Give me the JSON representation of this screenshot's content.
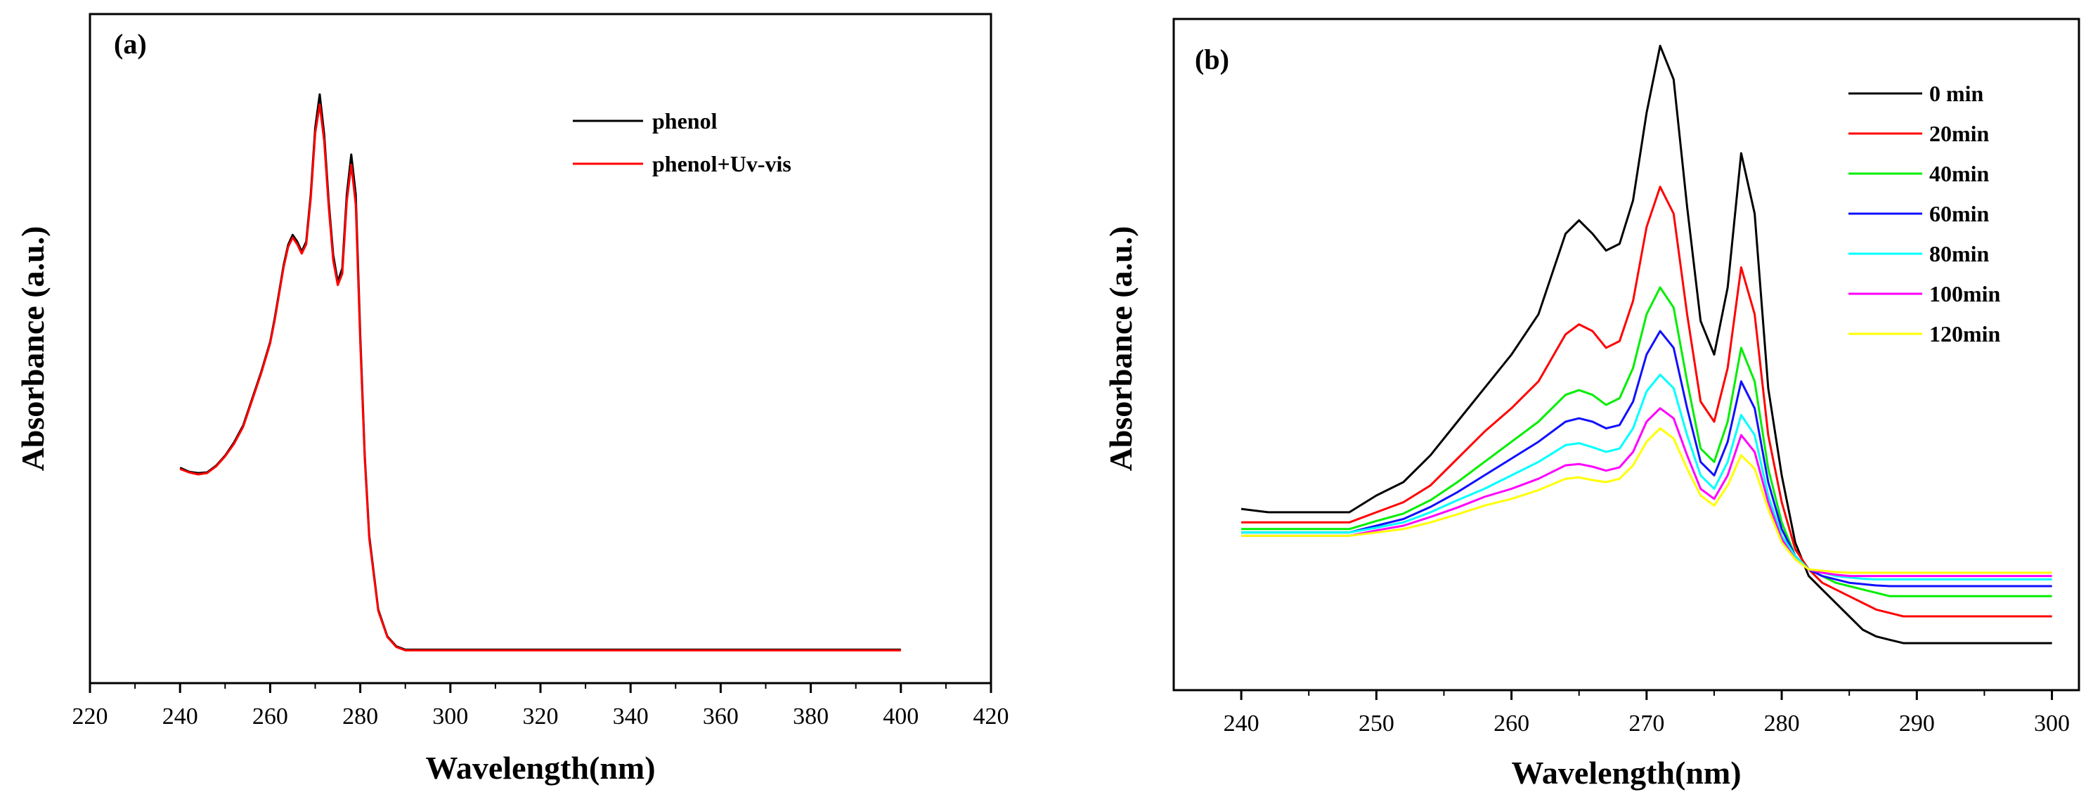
{
  "chart_data": [
    {
      "type": "line",
      "panel_label": "(a)",
      "xlabel": "Wavelength(nm)",
      "ylabel": "Absorbance (a.u.)",
      "xlim": [
        220,
        420
      ],
      "ylim": [
        0,
        1
      ],
      "xticks": [
        220,
        240,
        260,
        280,
        300,
        320,
        340,
        360,
        380,
        400,
        420
      ],
      "xtick_labels": [
        "220",
        "240",
        "260",
        "280",
        "300",
        "320",
        "340",
        "360",
        "380",
        "400",
        "420"
      ],
      "legend_position": "top-right",
      "series": [
        {
          "name": "phenol",
          "color": "#000000",
          "x": [
            240,
            242,
            244,
            246,
            248,
            250,
            252,
            254,
            256,
            258,
            260,
            261,
            262,
            263,
            264,
            265,
            266,
            267,
            268,
            269,
            270,
            271,
            272,
            273,
            274,
            275,
            276,
            277,
            278,
            279,
            280,
            281,
            282,
            284,
            286,
            288,
            290,
            295,
            300,
            310,
            320,
            330,
            340,
            350,
            360,
            370,
            380,
            390,
            400
          ],
          "y": [
            0.322,
            0.316,
            0.314,
            0.315,
            0.325,
            0.34,
            0.36,
            0.385,
            0.425,
            0.465,
            0.51,
            0.545,
            0.585,
            0.625,
            0.655,
            0.67,
            0.66,
            0.645,
            0.66,
            0.73,
            0.83,
            0.88,
            0.82,
            0.72,
            0.64,
            0.6,
            0.62,
            0.73,
            0.79,
            0.73,
            0.52,
            0.34,
            0.22,
            0.11,
            0.07,
            0.055,
            0.05,
            0.05,
            0.05,
            0.05,
            0.05,
            0.05,
            0.05,
            0.05,
            0.05,
            0.05,
            0.05,
            0.05,
            0.05
          ]
        },
        {
          "name": "phenol+Uv-vis",
          "color": "#ff0000",
          "x": [
            240,
            242,
            244,
            246,
            248,
            250,
            252,
            254,
            256,
            258,
            260,
            261,
            262,
            263,
            264,
            265,
            266,
            267,
            268,
            269,
            270,
            271,
            272,
            273,
            274,
            275,
            276,
            277,
            278,
            279,
            280,
            281,
            282,
            284,
            286,
            288,
            290,
            295,
            300,
            310,
            320,
            330,
            340,
            350,
            360,
            370,
            380,
            390,
            400
          ],
          "y": [
            0.32,
            0.315,
            0.312,
            0.314,
            0.324,
            0.339,
            0.358,
            0.383,
            0.423,
            0.463,
            0.508,
            0.542,
            0.582,
            0.622,
            0.652,
            0.666,
            0.656,
            0.642,
            0.656,
            0.724,
            0.822,
            0.865,
            0.81,
            0.712,
            0.632,
            0.595,
            0.612,
            0.72,
            0.775,
            0.715,
            0.51,
            0.335,
            0.216,
            0.108,
            0.069,
            0.054,
            0.049,
            0.049,
            0.049,
            0.049,
            0.049,
            0.049,
            0.049,
            0.049,
            0.049,
            0.049,
            0.049,
            0.049,
            0.049
          ]
        }
      ]
    },
    {
      "type": "line",
      "panel_label": "(b)",
      "xlabel": "Wavelength(nm)",
      "ylabel": "Absorbance (a.u.)",
      "xlim": [
        235,
        302
      ],
      "ylim": [
        0,
        1
      ],
      "xticks": [
        240,
        250,
        260,
        270,
        280,
        290,
        300
      ],
      "xtick_labels": [
        "240",
        "250",
        "260",
        "270",
        "280",
        "290",
        "300"
      ],
      "legend_position": "top-right",
      "x": [
        240,
        242,
        244,
        246,
        248,
        250,
        252,
        254,
        256,
        258,
        260,
        262,
        264,
        265,
        266,
        267,
        268,
        269,
        270,
        271,
        272,
        273,
        274,
        275,
        276,
        277,
        278,
        279,
        280,
        281,
        282,
        283,
        284,
        285,
        286,
        287,
        288,
        289,
        290,
        292,
        294,
        296,
        298,
        300
      ],
      "series": [
        {
          "name": "0 min",
          "color": "#000000",
          "y": [
            0.27,
            0.265,
            0.265,
            0.265,
            0.265,
            0.29,
            0.31,
            0.35,
            0.4,
            0.45,
            0.5,
            0.56,
            0.68,
            0.7,
            0.68,
            0.655,
            0.665,
            0.73,
            0.86,
            0.96,
            0.91,
            0.72,
            0.55,
            0.5,
            0.6,
            0.8,
            0.71,
            0.45,
            0.32,
            0.22,
            0.17,
            0.15,
            0.13,
            0.11,
            0.09,
            0.08,
            0.075,
            0.07,
            0.07,
            0.07,
            0.07,
            0.07,
            0.07,
            0.07
          ]
        },
        {
          "name": "20min",
          "color": "#ff0000",
          "y": [
            0.25,
            0.25,
            0.25,
            0.25,
            0.25,
            0.265,
            0.28,
            0.305,
            0.345,
            0.385,
            0.42,
            0.46,
            0.53,
            0.545,
            0.535,
            0.51,
            0.52,
            0.58,
            0.69,
            0.75,
            0.71,
            0.56,
            0.43,
            0.4,
            0.48,
            0.63,
            0.56,
            0.38,
            0.28,
            0.21,
            0.18,
            0.16,
            0.15,
            0.14,
            0.13,
            0.12,
            0.115,
            0.11,
            0.11,
            0.11,
            0.11,
            0.11,
            0.11,
            0.11
          ]
        },
        {
          "name": "40min",
          "color": "#00ee00",
          "y": [
            0.24,
            0.24,
            0.24,
            0.24,
            0.24,
            0.252,
            0.263,
            0.283,
            0.31,
            0.34,
            0.37,
            0.4,
            0.44,
            0.447,
            0.44,
            0.425,
            0.435,
            0.48,
            0.56,
            0.6,
            0.57,
            0.46,
            0.36,
            0.34,
            0.4,
            0.51,
            0.46,
            0.33,
            0.25,
            0.2,
            0.18,
            0.17,
            0.16,
            0.155,
            0.15,
            0.145,
            0.14,
            0.14,
            0.14,
            0.14,
            0.14,
            0.14,
            0.14,
            0.14
          ]
        },
        {
          "name": "60min",
          "color": "#1010ff",
          "y": [
            0.235,
            0.235,
            0.235,
            0.235,
            0.235,
            0.245,
            0.255,
            0.273,
            0.295,
            0.32,
            0.345,
            0.37,
            0.4,
            0.405,
            0.4,
            0.39,
            0.395,
            0.43,
            0.5,
            0.535,
            0.51,
            0.42,
            0.34,
            0.32,
            0.37,
            0.46,
            0.42,
            0.31,
            0.24,
            0.2,
            0.18,
            0.17,
            0.165,
            0.16,
            0.158,
            0.156,
            0.155,
            0.155,
            0.155,
            0.155,
            0.155,
            0.155,
            0.155,
            0.155
          ]
        },
        {
          "name": "80min",
          "color": "#00ffff",
          "y": [
            0.235,
            0.235,
            0.235,
            0.235,
            0.235,
            0.242,
            0.25,
            0.265,
            0.283,
            0.3,
            0.32,
            0.34,
            0.365,
            0.368,
            0.362,
            0.355,
            0.36,
            0.39,
            0.445,
            0.47,
            0.45,
            0.38,
            0.32,
            0.3,
            0.34,
            0.41,
            0.38,
            0.29,
            0.23,
            0.2,
            0.18,
            0.175,
            0.17,
            0.168,
            0.166,
            0.165,
            0.165,
            0.165,
            0.165,
            0.165,
            0.165,
            0.165,
            0.165,
            0.165
          ]
        },
        {
          "name": "100min",
          "color": "#ff00ff",
          "y": [
            0.23,
            0.23,
            0.23,
            0.23,
            0.23,
            0.238,
            0.245,
            0.258,
            0.272,
            0.288,
            0.3,
            0.315,
            0.335,
            0.337,
            0.333,
            0.327,
            0.332,
            0.355,
            0.4,
            0.42,
            0.405,
            0.35,
            0.3,
            0.285,
            0.32,
            0.38,
            0.355,
            0.28,
            0.225,
            0.195,
            0.18,
            0.175,
            0.172,
            0.17,
            0.17,
            0.17,
            0.17,
            0.17,
            0.17,
            0.17,
            0.17,
            0.17,
            0.17,
            0.17
          ]
        },
        {
          "name": "120min",
          "color": "#ffff00",
          "y": [
            0.23,
            0.23,
            0.23,
            0.23,
            0.23,
            0.235,
            0.24,
            0.25,
            0.262,
            0.275,
            0.285,
            0.298,
            0.315,
            0.317,
            0.313,
            0.31,
            0.315,
            0.335,
            0.37,
            0.39,
            0.375,
            0.33,
            0.29,
            0.275,
            0.305,
            0.35,
            0.33,
            0.27,
            0.22,
            0.195,
            0.18,
            0.178,
            0.176,
            0.175,
            0.175,
            0.175,
            0.175,
            0.175,
            0.175,
            0.175,
            0.175,
            0.175,
            0.175,
            0.175
          ]
        }
      ]
    }
  ]
}
